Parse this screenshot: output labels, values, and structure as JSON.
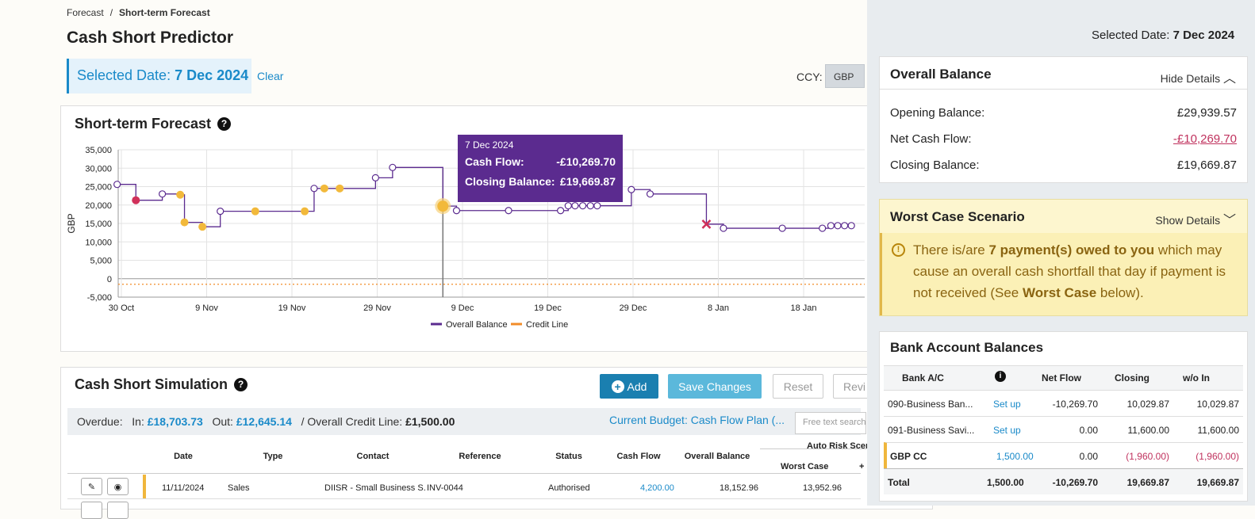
{
  "breadcrumb": {
    "parent": "Forecast",
    "sep": "/",
    "current": "Short-term Forecast"
  },
  "page_title": "Cash Short Predictor",
  "selected": {
    "label": "Selected Date:",
    "value": "7 Dec 2024",
    "clear": "Clear"
  },
  "ccy": {
    "label": "CCY:",
    "value": "GBP"
  },
  "forecast": {
    "title": "Short-term Forecast",
    "help": "?"
  },
  "chart_data": {
    "type": "line",
    "title": "Short-term Forecast",
    "xlabel": "",
    "ylabel": "GBP",
    "ylim": [
      -5000,
      35000
    ],
    "y_ticks": [
      "35,000",
      "30,000",
      "25,000",
      "20,000",
      "15,000",
      "10,000",
      "5,000",
      "0",
      "-5,000"
    ],
    "x_ticks": [
      "30 Oct",
      "9 Nov",
      "19 Nov",
      "29 Nov",
      "9 Dec",
      "19 Dec",
      "29 Dec",
      "8 Jan",
      "18 Jan"
    ],
    "x_days": [
      0,
      10,
      20,
      30,
      40,
      50,
      60,
      70,
      80
    ],
    "grid": true,
    "legend_position": "bottom",
    "series": [
      {
        "name": "Overall Balance",
        "color": "#5b2b8f",
        "step": true,
        "points": [
          [
            -0.5,
            25600
          ],
          [
            1.7,
            21300
          ],
          [
            4.8,
            23000
          ],
          [
            6.9,
            22800
          ],
          [
            7.4,
            15300
          ],
          [
            9.5,
            14100
          ],
          [
            11.6,
            18300
          ],
          [
            15.7,
            18300
          ],
          [
            21.5,
            18300
          ],
          [
            22.6,
            24500
          ],
          [
            23.8,
            24500
          ],
          [
            25.6,
            24500
          ],
          [
            29.8,
            27400
          ],
          [
            31.8,
            30200
          ],
          [
            37.7,
            19700
          ],
          [
            39.3,
            18500
          ],
          [
            45.4,
            18500
          ],
          [
            51.5,
            18500
          ],
          [
            52.4,
            19800
          ],
          [
            53.2,
            19800
          ],
          [
            54.1,
            19800
          ],
          [
            55.0,
            19800
          ],
          [
            55.8,
            19800
          ],
          [
            59.8,
            24200
          ],
          [
            62.0,
            23000
          ],
          [
            68.6,
            14800
          ],
          [
            70.6,
            13700
          ],
          [
            77.5,
            13700
          ],
          [
            82.2,
            13700
          ],
          [
            83.2,
            14400
          ],
          [
            84.0,
            14400
          ],
          [
            84.8,
            14400
          ],
          [
            85.6,
            14400
          ]
        ]
      },
      {
        "name": "Credit Line",
        "color": "#f28c28",
        "dashed": true,
        "value": -1500
      }
    ],
    "markers": [
      {
        "x": 1.7,
        "y": 21300,
        "kind": "red"
      },
      {
        "x": 6.9,
        "y": 22800,
        "kind": "yellow"
      },
      {
        "x": 7.4,
        "y": 15300,
        "kind": "yellow"
      },
      {
        "x": 9.5,
        "y": 14100,
        "kind": "yellow"
      },
      {
        "x": 15.7,
        "y": 18300,
        "kind": "yellow"
      },
      {
        "x": 21.5,
        "y": 18300,
        "kind": "yellow"
      },
      {
        "x": 23.8,
        "y": 24500,
        "kind": "yellow"
      },
      {
        "x": 25.6,
        "y": 24500,
        "kind": "yellow"
      },
      {
        "x": 37.7,
        "y": 19700,
        "kind": "selected"
      },
      {
        "x": 68.6,
        "y": 14800,
        "kind": "cross"
      }
    ],
    "selected_x": 37.7
  },
  "tooltip": {
    "date": "7 Dec 2024",
    "cf_label": "Cash Flow:",
    "cf_value": "-£10,269.70",
    "cb_label": "Closing Balance:",
    "cb_value": "£19,669.87"
  },
  "simulation": {
    "title": "Cash Short Simulation",
    "help": "?",
    "add": "Add",
    "save": "Save Changes",
    "reset": "Reset",
    "review": "Revi",
    "overdue_label": "Overdue:",
    "in_label": "In:",
    "in_value": "£18,703.73",
    "out_label": "Out:",
    "out_value": "£12,645.14",
    "credit_label": "/ Overall Credit Line:",
    "credit_value": "£1,500.00",
    "budget": "Current Budget: Cash Flow Plan (...",
    "search_placeholder": "Free text search",
    "columns": [
      "Date",
      "Type",
      "Contact",
      "Reference",
      "Status",
      "Cash Flow",
      "Overall Balance"
    ],
    "auto_risk": "Auto Risk Scena",
    "worst_case": "Worst Case",
    "extra_col": "+ C",
    "row": {
      "date": "11/11/2024",
      "type": "Sales",
      "contact": "DIISR - Small Business S...",
      "reference": "INV-0044",
      "status": "Authorised",
      "cash_flow": "4,200.00",
      "overall_balance": "18,152.96",
      "worst_case": "13,952.96"
    }
  },
  "right": {
    "selected_label": "Selected Date:",
    "selected_value": "7 Dec 2024",
    "overall": {
      "title": "Overall Balance",
      "toggle": "Hide Details",
      "opening_label": "Opening Balance:",
      "opening_value": "£29,939.57",
      "net_label": "Net Cash Flow:",
      "net_value": "-£10,269.70",
      "closing_label": "Closing Balance:",
      "closing_value": "£19,669.87"
    },
    "worst": {
      "title": "Worst Case Scenario",
      "toggle": "Show Details",
      "msg_a": "There is/are ",
      "msg_bold1": "7 payment(s) owed to you",
      "msg_b": " which may cause an overall cash shortfall that day if payment is not received (See ",
      "msg_bold2": "Worst Case",
      "msg_c": " below)."
    },
    "bank": {
      "title": "Bank Account Balances",
      "headers": [
        "Bank A/C",
        "Net Flow",
        "Closing",
        "w/o In"
      ],
      "rows": [
        {
          "name": "090-Business Ban...",
          "link": "Set up",
          "net": "-10,269.70",
          "closing": "10,029.87",
          "wo": "10,029.87"
        },
        {
          "name": "091-Business Savi...",
          "link": "Set up",
          "net": "0.00",
          "closing": "11,600.00",
          "wo": "11,600.00"
        },
        {
          "name": "GBP CC",
          "link": "1,500.00",
          "net": "0.00",
          "closing": "(1,960.00)",
          "wo": "(1,960.00)"
        }
      ],
      "total": {
        "name": "Total",
        "link": "1,500.00",
        "net": "-10,269.70",
        "closing": "19,669.87",
        "wo": "19,669.87"
      }
    }
  }
}
